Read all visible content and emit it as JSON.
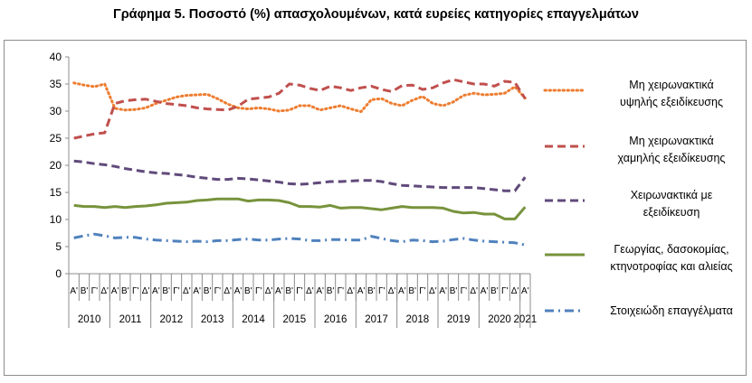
{
  "chart_data": {
    "type": "line",
    "title": "Γράφημα 5. Ποσοστό (%) απασχολουμένων, κατά ευρείες κατηγορίες επαγγελμάτων",
    "xlabel": "",
    "ylabel": "",
    "ylim": [
      0,
      40
    ],
    "yticks": [
      0,
      5,
      10,
      15,
      20,
      25,
      30,
      35,
      40
    ],
    "grid": false,
    "legend_position": "right",
    "quarter_labels": [
      "Α'",
      "Β'",
      "Γ'",
      "Δ'"
    ],
    "years": [
      "2010",
      "2011",
      "2012",
      "2013",
      "2014",
      "2015",
      "2016",
      "2017",
      "2018",
      "2019",
      "2020",
      "2021"
    ],
    "x": [
      "2010 Α'",
      "2010 Β'",
      "2010 Γ'",
      "2010 Δ'",
      "2011 Α'",
      "2011 Β'",
      "2011 Γ'",
      "2011 Δ'",
      "2012 Α'",
      "2012 Β'",
      "2012 Γ'",
      "2012 Δ'",
      "2013 Α'",
      "2013 Β'",
      "2013 Γ'",
      "2013 Δ'",
      "2014 Α'",
      "2014 Β'",
      "2014 Γ'",
      "2014 Δ'",
      "2015 Α'",
      "2015 Β'",
      "2015 Γ'",
      "2015 Δ'",
      "2016 Α'",
      "2016 Β'",
      "2016 Γ'",
      "2016 Δ'",
      "2017 Α'",
      "2017 Β'",
      "2017 Γ'",
      "2017 Δ'",
      "2018 Α'",
      "2018 Β'",
      "2018 Γ'",
      "2018 Δ'",
      "2019 Α'",
      "2019 Β'",
      "2019 Γ'",
      "2019 Δ'",
      "2020 Α'",
      "2020 Β'",
      "2020 Γ'",
      "2020 Δ'",
      "2021 Α'"
    ],
    "series": [
      {
        "name": "Μη χειρωνακτικά υψηλής εξειδίκευσης",
        "legend_lines": [
          "Μη χειρωνακτικά",
          "υψηλής εξειδίκευσης"
        ],
        "color": "#ed7d31",
        "style": "dotted",
        "values": [
          35.2,
          34.8,
          34.5,
          35.0,
          30.5,
          30.2,
          30.3,
          30.6,
          31.4,
          32.0,
          32.6,
          32.9,
          33.0,
          33.1,
          32.3,
          31.3,
          30.6,
          30.4,
          30.6,
          30.4,
          30.0,
          30.2,
          31.0,
          31.0,
          30.2,
          30.6,
          31.0,
          30.4,
          29.9,
          32.1,
          32.3,
          31.4,
          31.0,
          32.0,
          32.7,
          31.4,
          31.0,
          31.7,
          32.9,
          33.3,
          33.0,
          33.1,
          33.3,
          34.5,
          32.4
        ]
      },
      {
        "name": "Μη χειρωνακτικά χαμηλής εξειδίκευσης",
        "legend_lines": [
          "Μη χειρωνακτικά",
          "χαμηλής εξειδίκευσης"
        ],
        "color": "#c0504d",
        "style": "dashed",
        "values": [
          25.0,
          25.4,
          25.8,
          26.0,
          31.4,
          31.9,
          32.1,
          32.2,
          31.8,
          31.4,
          31.2,
          31.0,
          30.6,
          30.4,
          30.3,
          30.2,
          30.9,
          32.2,
          32.4,
          32.6,
          33.3,
          35.0,
          34.8,
          34.2,
          33.8,
          34.6,
          34.3,
          33.8,
          34.3,
          34.6,
          34.0,
          33.6,
          34.7,
          34.8,
          34.0,
          34.3,
          35.2,
          35.8,
          35.4,
          35.0,
          35.0,
          34.6,
          35.5,
          35.3,
          32.3
        ]
      },
      {
        "name": "Χειρωνακτικά με εξειδίκευση",
        "legend_lines": [
          "Χειρωνακτικά με",
          "εξειδίκευση"
        ],
        "color": "#604a7b",
        "style": "dashed",
        "values": [
          20.8,
          20.6,
          20.3,
          20.1,
          19.8,
          19.4,
          19.1,
          18.8,
          18.6,
          18.5,
          18.3,
          18.1,
          17.8,
          17.6,
          17.4,
          17.4,
          17.6,
          17.5,
          17.3,
          17.1,
          16.9,
          16.6,
          16.5,
          16.6,
          16.8,
          17.0,
          17.0,
          17.1,
          17.2,
          17.2,
          17.0,
          16.6,
          16.3,
          16.2,
          16.1,
          16.0,
          15.9,
          15.9,
          15.9,
          15.9,
          15.7,
          15.5,
          15.3,
          15.3,
          17.8
        ]
      },
      {
        "name": "Γεωργίας, δασοκομίας, κτηνοτροφίας και αλιείας",
        "legend_lines": [
          "Γεωργίας, δασοκομίας,",
          "κτηνοτροφίας και αλιείας"
        ],
        "color": "#77933c",
        "style": "solid",
        "values": [
          12.6,
          12.4,
          12.4,
          12.2,
          12.4,
          12.2,
          12.4,
          12.5,
          12.7,
          13.0,
          13.1,
          13.2,
          13.5,
          13.6,
          13.8,
          13.8,
          13.8,
          13.4,
          13.6,
          13.6,
          13.5,
          13.1,
          12.4,
          12.4,
          12.3,
          12.6,
          12.1,
          12.2,
          12.2,
          12.0,
          11.8,
          12.1,
          12.4,
          12.2,
          12.2,
          12.2,
          12.1,
          11.5,
          11.2,
          11.3,
          11.0,
          11.0,
          10.1,
          10.1,
          12.3
        ]
      },
      {
        "name": "Στοιχειώδη επαγγέλματα",
        "legend_lines": [
          "Στοιχειώδη επαγγέλματα"
        ],
        "color": "#4f81bd",
        "style": "dashdot",
        "values": [
          6.6,
          7.0,
          7.3,
          7.0,
          6.6,
          6.7,
          6.7,
          6.4,
          6.2,
          6.1,
          6.0,
          5.9,
          6.0,
          5.9,
          6.1,
          6.1,
          6.3,
          6.4,
          6.2,
          6.2,
          6.4,
          6.5,
          6.4,
          6.1,
          6.1,
          6.3,
          6.3,
          6.2,
          6.2,
          6.9,
          6.5,
          6.1,
          5.9,
          6.2,
          6.1,
          5.9,
          6.0,
          6.3,
          6.5,
          6.2,
          6.0,
          5.9,
          5.8,
          5.7,
          5.3
        ]
      }
    ]
  }
}
